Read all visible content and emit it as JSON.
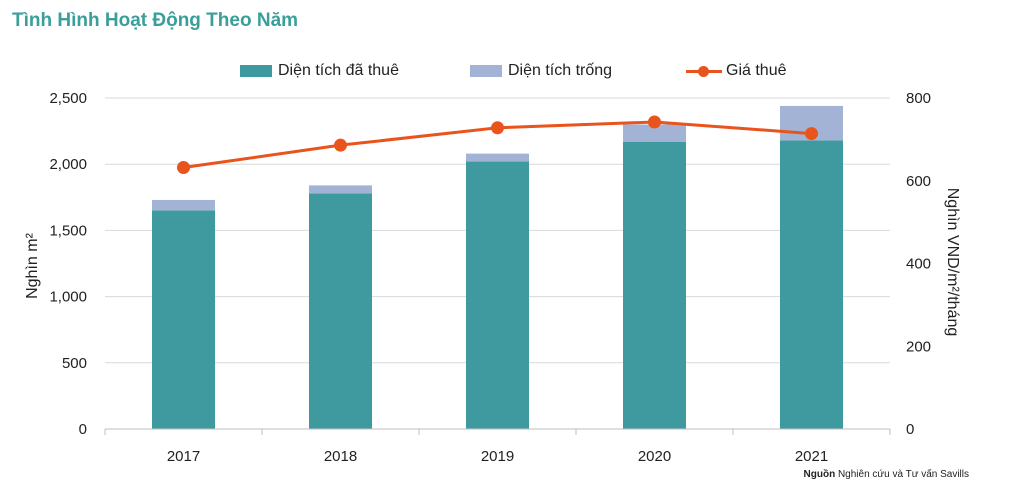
{
  "title": "Tình Hình Hoạt Động Theo Năm",
  "legend": {
    "leased": "Diện tích đã thuê",
    "vacant": "Diện tích trống",
    "rent": "Giá thuê"
  },
  "source": {
    "label": "Nguồn",
    "text": "Nghiên cứu và Tư vấn Savills"
  },
  "chart_data": {
    "type": "bar",
    "stacked": true,
    "title": "Tình Hình Hoạt Động Theo Năm",
    "categories": [
      "2017",
      "2018",
      "2019",
      "2020",
      "2021"
    ],
    "series": [
      {
        "name": "Diện tích đã thuê",
        "type": "bar",
        "axis": "left",
        "color": "#3f9a9f",
        "values": [
          1650,
          1780,
          2020,
          2170,
          2180
        ]
      },
      {
        "name": "Diện tích trống",
        "type": "bar",
        "axis": "left",
        "color": "#a3b3d6",
        "values": [
          80,
          60,
          60,
          130,
          260
        ]
      },
      {
        "name": "Giá thuê",
        "type": "line",
        "axis": "right",
        "color": "#e8541c",
        "values": [
          632,
          686,
          728,
          742,
          714
        ]
      }
    ],
    "y_left": {
      "label": "Nghìn m²",
      "min": 0,
      "max": 2500,
      "ticks": [
        0,
        500,
        1000,
        1500,
        2000,
        2500
      ],
      "tick_labels": [
        "0",
        "500",
        "1,000",
        "1,500",
        "2,000",
        "2,500"
      ]
    },
    "y_right": {
      "label": "Nghìn VND/m²/tháng",
      "min": 0,
      "max": 800,
      "ticks": [
        0,
        200,
        400,
        600,
        800
      ],
      "tick_labels": [
        "0",
        "200",
        "400",
        "600",
        "800"
      ]
    },
    "grid": true,
    "legend_position": "top"
  }
}
